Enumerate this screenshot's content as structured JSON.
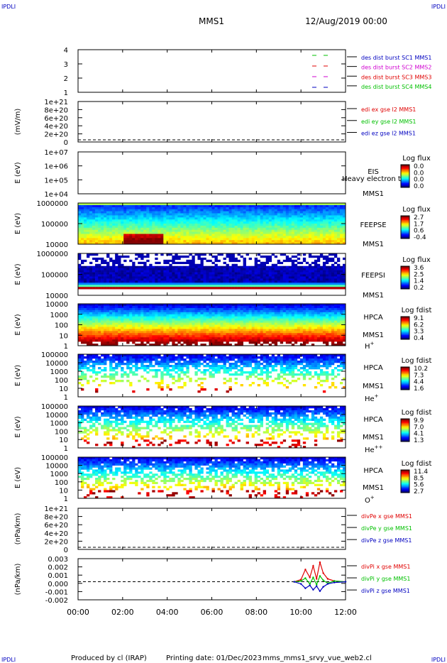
{
  "corner_label": "IPDLI",
  "header": {
    "title": "MMS1",
    "datetime": "12/Aug/2019 00:00"
  },
  "footer": {
    "produced_by": "Produced by cl (IRAP)",
    "printing_date": "Printing date: 01/Dec/2023",
    "script": "mms_mms1_srvy_vue_web2.cl"
  },
  "time_axis": {
    "ticks": [
      "00:00",
      "02:00",
      "04:00",
      "06:00",
      "08:00",
      "10:00",
      "12:00"
    ],
    "range_hours": [
      0,
      12
    ]
  },
  "colors": {
    "red": "#e00000",
    "green": "#00c000",
    "blue": "#0000c0",
    "magenta": "#d000d0",
    "darkred": "#a00000"
  },
  "panels": [
    {
      "id": "burst",
      "kind": "line",
      "ylabel": "",
      "yticks": [
        "4",
        "3",
        "2",
        "1"
      ],
      "legend": [
        {
          "text": "des dist burst SC1 MMS1",
          "color": "#0000c0"
        },
        {
          "text": "des dist burst SC2 MMS2",
          "color": "#d000d0"
        },
        {
          "text": "des dist burst SC3 MMS3",
          "color": "#e00000"
        },
        {
          "text": "des dist burst SC4 MMS4",
          "color": "#00c000"
        }
      ]
    },
    {
      "id": "edi",
      "kind": "line",
      "ylabel": "(mV/m)",
      "yticks": [
        "1e+21",
        "8e+20",
        "6e+20",
        "4e+20",
        "2e+20",
        "0"
      ],
      "legend": [
        {
          "text": "edi ex gse l2 MMS1",
          "color": "#e00000"
        },
        {
          "text": "edi ey gse l2 MMS1",
          "color": "#00c000"
        },
        {
          "text": "edi ez gse l2 MMS1",
          "color": "#0000c0"
        }
      ]
    },
    {
      "id": "eis",
      "kind": "spectrogram",
      "ylabel": "E (eV)",
      "yticks": [
        "1e+07",
        "1e+06",
        "1e+05",
        "1e+04"
      ],
      "labels": [
        "EIS",
        "MMS1"
      ],
      "overlay_text": "Heavy electron to",
      "cbar_title": "Log flux",
      "cbar_ticks": [
        "0.0",
        "0.0",
        "0.0",
        "0.0"
      ]
    },
    {
      "id": "feepse",
      "kind": "spectrogram",
      "ylabel": "E (eV)",
      "yticks": [
        "1000000",
        "100000",
        "10000"
      ],
      "labels": [
        "FEEPSE",
        "MMS1"
      ],
      "cbar_title": "Log flux",
      "cbar_ticks": [
        "2.7",
        "1.7",
        "0.6",
        "-0.4"
      ]
    },
    {
      "id": "feepsi",
      "kind": "spectrogram",
      "ylabel": "E (eV)",
      "yticks": [
        "1000000",
        "100000",
        "10000"
      ],
      "labels": [
        "FEEPSI",
        "MMS1"
      ],
      "cbar_title": "Log flux",
      "cbar_ticks": [
        "3.6",
        "2.5",
        "1.4",
        "0.2"
      ]
    },
    {
      "id": "hpca_h",
      "kind": "spectrogram",
      "ylabel": "E (eV)",
      "yticks": [
        "10000",
        "1000",
        "100",
        "10",
        "1"
      ],
      "labels": [
        "HPCA",
        "MMS1"
      ],
      "species": "H",
      "species_sup": "+",
      "cbar_title": "Log fdist",
      "cbar_ticks": [
        "9.1",
        "6.2",
        "3.3",
        "0.4"
      ]
    },
    {
      "id": "hpca_he",
      "kind": "spectrogram",
      "ylabel": "E (eV)",
      "yticks": [
        "100000",
        "10000",
        "1000",
        "100",
        "10",
        "1"
      ],
      "labels": [
        "HPCA",
        "MMS1"
      ],
      "species": "He",
      "species_sup": "+",
      "cbar_title": "Log fdist",
      "cbar_ticks": [
        "10.2",
        "7.3",
        "4.4",
        "1.6"
      ]
    },
    {
      "id": "hpca_hepp",
      "kind": "spectrogram",
      "ylabel": "E (eV)",
      "yticks": [
        "100000",
        "10000",
        "1000",
        "100",
        "10",
        "1"
      ],
      "labels": [
        "HPCA",
        "MMS1"
      ],
      "species": "He",
      "species_sup": "++",
      "cbar_title": "Log fdist",
      "cbar_ticks": [
        "9.9",
        "7.0",
        "4.1",
        "1.3"
      ]
    },
    {
      "id": "hpca_o",
      "kind": "spectrogram",
      "ylabel": "E (eV)",
      "yticks": [
        "100000",
        "10000",
        "1000",
        "100",
        "10",
        "1"
      ],
      "labels": [
        "HPCA",
        "MMS1"
      ],
      "species": "O",
      "species_sup": "+",
      "cbar_title": "Log fdist",
      "cbar_ticks": [
        "11.4",
        "8.5",
        "5.6",
        "2.7"
      ]
    },
    {
      "id": "divpe",
      "kind": "line",
      "ylabel": "(nPa/km)",
      "yticks": [
        "1e+21",
        "8e+20",
        "6e+20",
        "4e+20",
        "2e+20",
        "0"
      ],
      "legend": [
        {
          "text": "divPe x gse MMS1",
          "color": "#e00000"
        },
        {
          "text": "divPe y gse MMS1",
          "color": "#00c000"
        },
        {
          "text": "divPe z gse MMS1",
          "color": "#0000c0"
        }
      ]
    },
    {
      "id": "divpi",
      "kind": "line",
      "ylabel": "(nPa/km)",
      "yticks": [
        "0.003",
        "0.002",
        "0.001",
        "0.000",
        "-0.001",
        "-0.002"
      ],
      "legend": [
        {
          "text": "divPi x gse MMS1",
          "color": "#e00000"
        },
        {
          "text": "divPi y gse MMS1",
          "color": "#00c000"
        },
        {
          "text": "divPi z gse MMS1",
          "color": "#0000c0"
        }
      ]
    }
  ],
  "chart_data": {
    "type": "line",
    "title": "MMS1",
    "subtitle": "12/Aug/2019 00:00",
    "xlabel": "",
    "ylabel": "(nPa/km)",
    "x_unit": "hours",
    "xlim": [
      0,
      12
    ],
    "ylim": [
      -0.0025,
      0.0032
    ],
    "series": [
      {
        "name": "divPi x gse MMS1",
        "color": "#e00000",
        "x": [
          9.7,
          10.0,
          10.2,
          10.4,
          10.55,
          10.7,
          10.85,
          11.0,
          11.2,
          11.5,
          12.0
        ],
        "y": [
          0.0,
          0.0003,
          0.0017,
          0.0006,
          0.0022,
          0.0004,
          0.0027,
          0.0012,
          0.0004,
          0.0001,
          0.0
        ]
      },
      {
        "name": "divPi y gse MMS1",
        "color": "#00c000",
        "x": [
          9.7,
          10.0,
          10.2,
          10.4,
          10.55,
          10.7,
          10.85,
          11.0,
          11.2,
          11.5,
          12.0
        ],
        "y": [
          0.0,
          0.0001,
          0.0005,
          -0.0003,
          0.0006,
          -0.0004,
          0.0008,
          0.0002,
          -0.0002,
          0.0001,
          0.0
        ]
      },
      {
        "name": "divPi z gse MMS1",
        "color": "#0000c0",
        "x": [
          9.7,
          10.0,
          10.2,
          10.4,
          10.55,
          10.7,
          10.85,
          11.0,
          11.2,
          11.5,
          12.0
        ],
        "y": [
          0.0,
          -0.0003,
          -0.0009,
          -0.0005,
          -0.0011,
          -0.0006,
          -0.0013,
          -0.0007,
          -0.0003,
          -0.0001,
          0.0
        ]
      }
    ]
  }
}
